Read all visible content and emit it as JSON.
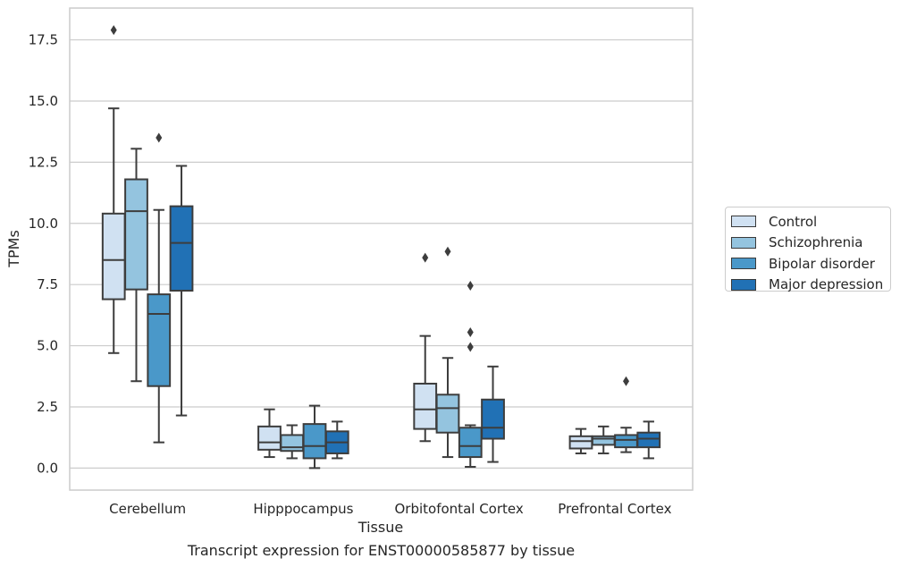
{
  "chart_data": {
    "type": "boxplot",
    "xlabel": "Tissue",
    "ylabel": "TPMs",
    "ylim": [
      -0.9,
      18.8
    ],
    "yticks": [
      0.0,
      2.5,
      5.0,
      7.5,
      10.0,
      12.5,
      15.0,
      17.5
    ],
    "ytick_labels": [
      "0.0",
      "2.5",
      "5.0",
      "7.5",
      "10.0",
      "12.5",
      "15.0",
      "17.5"
    ],
    "grid": true,
    "legend_placement": "right",
    "categories": [
      "Cerebellum",
      "Hipppocampus",
      "Orbitofontal Cortex",
      "Prefrontal Cortex"
    ],
    "series": [
      {
        "name": "Control",
        "color": "#d0e1f2",
        "boxes": [
          {
            "whislo": 4.7,
            "q1": 6.9,
            "med": 8.5,
            "q3": 10.4,
            "whishi": 14.7,
            "fliers": [
              17.9
            ]
          },
          {
            "whislo": 0.45,
            "q1": 0.75,
            "med": 1.05,
            "q3": 1.7,
            "whishi": 2.4,
            "fliers": []
          },
          {
            "whislo": 1.1,
            "q1": 1.6,
            "med": 2.4,
            "q3": 3.45,
            "whishi": 5.4,
            "fliers": [
              8.6
            ]
          },
          {
            "whislo": 0.6,
            "q1": 0.8,
            "med": 1.1,
            "q3": 1.3,
            "whishi": 1.6,
            "fliers": []
          }
        ]
      },
      {
        "name": "Schizophrenia",
        "color": "#94c4df",
        "boxes": [
          {
            "whislo": 3.55,
            "q1": 7.3,
            "med": 10.5,
            "q3": 11.8,
            "whishi": 13.05,
            "fliers": []
          },
          {
            "whislo": 0.4,
            "q1": 0.7,
            "med": 0.85,
            "q3": 1.35,
            "whishi": 1.75,
            "fliers": []
          },
          {
            "whislo": 0.45,
            "q1": 1.45,
            "med": 2.45,
            "q3": 3.0,
            "whishi": 4.5,
            "fliers": [
              8.85
            ]
          },
          {
            "whislo": 0.6,
            "q1": 0.95,
            "med": 1.2,
            "q3": 1.3,
            "whishi": 1.7,
            "fliers": []
          }
        ]
      },
      {
        "name": "Bipolar disorder",
        "color": "#4a98c9",
        "boxes": [
          {
            "whislo": 1.05,
            "q1": 3.35,
            "med": 6.3,
            "q3": 7.1,
            "whishi": 10.55,
            "fliers": [
              13.5
            ]
          },
          {
            "whislo": 0.0,
            "q1": 0.4,
            "med": 0.9,
            "q3": 1.8,
            "whishi": 2.55,
            "fliers": []
          },
          {
            "whislo": 0.05,
            "q1": 0.45,
            "med": 0.9,
            "q3": 1.65,
            "whishi": 1.75,
            "fliers": [
              7.45,
              5.55,
              4.95
            ]
          },
          {
            "whislo": 0.65,
            "q1": 0.85,
            "med": 1.15,
            "q3": 1.35,
            "whishi": 1.65,
            "fliers": [
              3.55
            ]
          }
        ]
      },
      {
        "name": "Major depression",
        "color": "#2171b5",
        "boxes": [
          {
            "whislo": 2.15,
            "q1": 7.25,
            "med": 9.2,
            "q3": 10.7,
            "whishi": 12.35,
            "fliers": []
          },
          {
            "whislo": 0.4,
            "q1": 0.6,
            "med": 1.05,
            "q3": 1.5,
            "whishi": 1.9,
            "fliers": []
          },
          {
            "whislo": 0.25,
            "q1": 1.2,
            "med": 1.65,
            "q3": 2.8,
            "whishi": 4.15,
            "fliers": []
          },
          {
            "whislo": 0.4,
            "q1": 0.85,
            "med": 1.2,
            "q3": 1.45,
            "whishi": 1.9,
            "fliers": []
          }
        ]
      }
    ]
  },
  "caption": "Transcript expression for ENST00000585877 by tissue"
}
